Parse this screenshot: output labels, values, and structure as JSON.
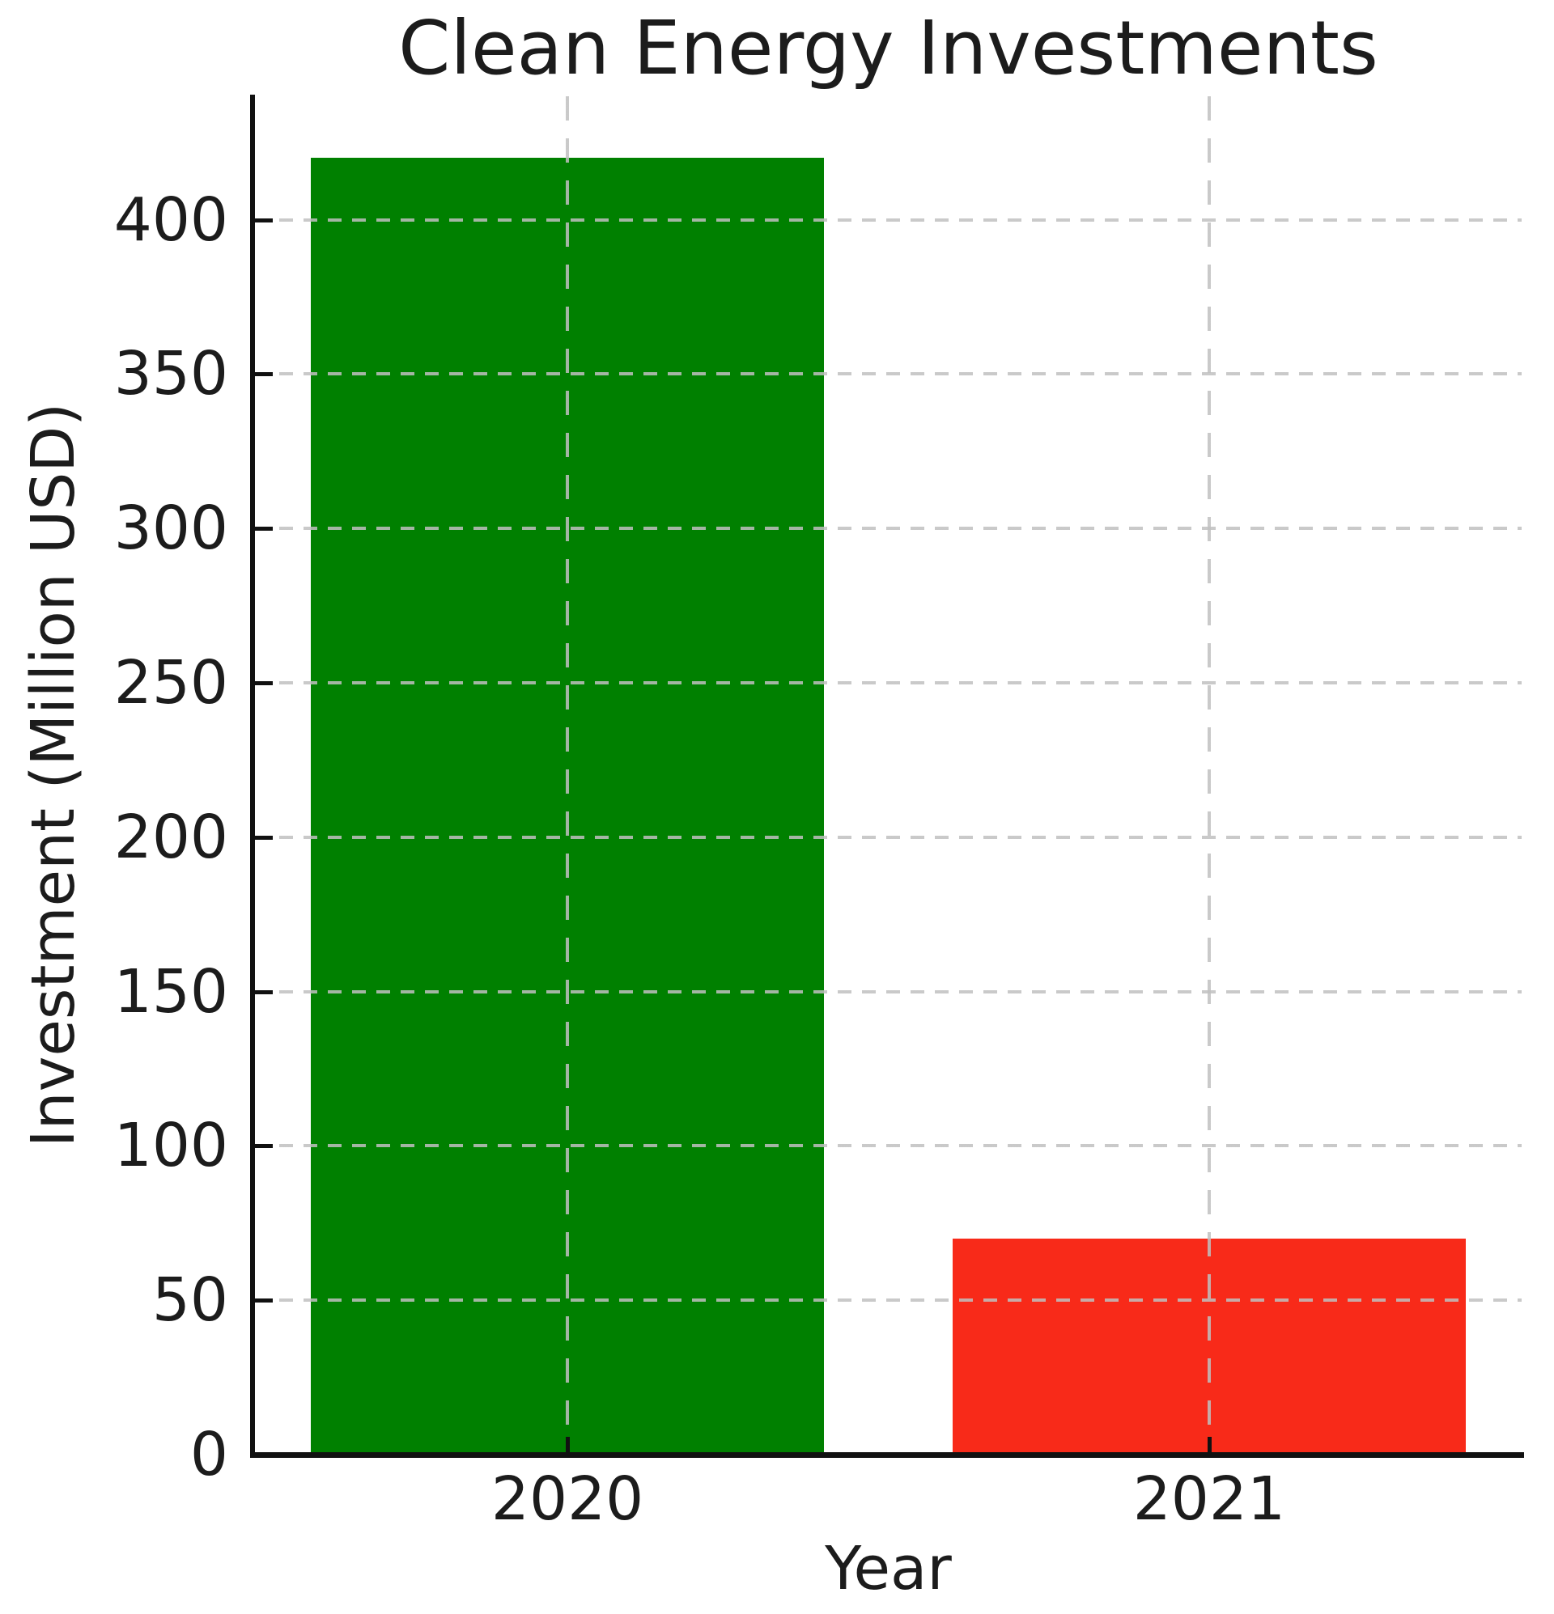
{
  "chart_data": {
    "type": "bar",
    "title": "Clean Energy Investments",
    "xlabel": "Year",
    "ylabel": "Investment (Million USD)",
    "categories": [
      "2020",
      "2021"
    ],
    "values": [
      420,
      70
    ],
    "bar_colors": [
      "#008000",
      "#f82a19"
    ],
    "ylim": [
      0,
      440
    ],
    "yticks": [
      0,
      50,
      100,
      150,
      200,
      250,
      300,
      350,
      400
    ],
    "grid": {
      "axis": "both",
      "linestyle": "dashed",
      "color": "#c9c9c9",
      "drawn_over_bars": true
    },
    "legend": "none",
    "spines": [
      "left",
      "bottom"
    ],
    "tick_direction": "in"
  },
  "style": {
    "background": "#ffffff",
    "spine_color": "#111111",
    "text_color": "#1c1c1c"
  }
}
